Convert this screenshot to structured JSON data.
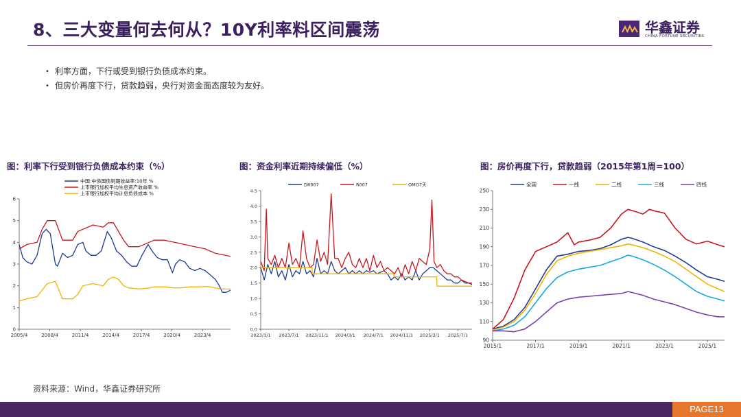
{
  "page": {
    "title": "8、三大变量何去何从？10Y利率料区间震荡",
    "logo_name": "华鑫证券",
    "logo_sub": "CHINA FORTUNE SECURITIES",
    "page_label": "PAGE13",
    "source": "资料来源：Wind，华鑫证券研究所",
    "bullets": [
      "利率方面，下行或受到银行负债成本约束。",
      "但房价再度下行，贷款趋弱，央行对资金面态度较为友好。"
    ]
  },
  "chart_data": [
    {
      "type": "line",
      "title": "图：利率下行受到银行负债成本约束（%）",
      "x_ticks": [
        "2005/4",
        "2008/4",
        "2011/4",
        "2014/4",
        "2017/4",
        "2020/4",
        "2023/4"
      ],
      "x_tick_pos": [
        2005.25,
        2008.25,
        2011.25,
        2014.25,
        2017.25,
        2020.25,
        2023.25
      ],
      "xlim": [
        2005.25,
        2026.0
      ],
      "ylim": [
        0,
        6
      ],
      "y_ticks": [
        "0",
        "1",
        "2",
        "3",
        "4",
        "5",
        "6"
      ],
      "legend_position": "top-left",
      "series": [
        {
          "name": "中国:中债国债到期收益率:10年 %",
          "color": "#1f3a93",
          "x": [
            2005.25,
            2005.6,
            2006.0,
            2006.5,
            2007.0,
            2007.5,
            2007.9,
            2008.3,
            2008.8,
            2009.0,
            2009.5,
            2010.0,
            2010.5,
            2011.0,
            2011.5,
            2011.8,
            2012.3,
            2012.8,
            2013.3,
            2013.9,
            2014.3,
            2014.8,
            2015.3,
            2015.8,
            2016.3,
            2016.8,
            2017.3,
            2017.9,
            2018.3,
            2018.8,
            2019.3,
            2019.8,
            2020.3,
            2020.6,
            2021.0,
            2021.5,
            2022.0,
            2022.5,
            2023.0,
            2023.5,
            2024.0,
            2024.5,
            2024.9,
            2025.2,
            2025.6,
            2026.0
          ],
          "values": [
            3.9,
            3.3,
            3.1,
            3.0,
            3.4,
            4.4,
            4.6,
            4.4,
            3.0,
            2.9,
            3.5,
            3.3,
            3.4,
            3.9,
            4.0,
            3.6,
            3.4,
            3.4,
            3.6,
            4.5,
            4.2,
            3.6,
            3.4,
            3.1,
            2.9,
            2.9,
            3.4,
            3.9,
            3.6,
            3.3,
            3.2,
            3.2,
            2.6,
            3.0,
            3.2,
            3.1,
            2.8,
            2.7,
            2.8,
            2.7,
            2.5,
            2.3,
            2.0,
            1.7,
            1.7,
            1.8
          ]
        },
        {
          "name": "上市银行加权平均生息资产收益率 %",
          "color": "#c8161d",
          "x": [
            2005.25,
            2006.0,
            2007.0,
            2007.5,
            2008.0,
            2008.8,
            2009.5,
            2010.5,
            2011.0,
            2011.5,
            2012.5,
            2013.5,
            2014.0,
            2014.5,
            2015.0,
            2015.5,
            2016.0,
            2017.0,
            2018.0,
            2018.5,
            2019.5,
            2020.5,
            2021.0,
            2021.5,
            2022.0,
            2022.5,
            2023.0,
            2023.5,
            2024.0,
            2024.5,
            2025.0,
            2025.5,
            2026.0
          ],
          "values": [
            3.7,
            3.9,
            4.0,
            4.6,
            5.0,
            5.0,
            4.1,
            4.1,
            4.5,
            4.6,
            4.8,
            4.7,
            4.9,
            4.9,
            4.5,
            4.1,
            3.8,
            3.8,
            4.0,
            4.1,
            4.1,
            4.0,
            3.95,
            3.9,
            3.85,
            3.8,
            3.75,
            3.7,
            3.6,
            3.5,
            3.45,
            3.4,
            3.35
          ]
        },
        {
          "name": "上市银行加权平均计息负债成本 %",
          "color": "#f0b400",
          "x": [
            2005.25,
            2006.0,
            2007.0,
            2007.5,
            2008.0,
            2008.8,
            2009.5,
            2010.5,
            2011.0,
            2011.5,
            2012.5,
            2013.5,
            2014.0,
            2014.5,
            2015.0,
            2015.5,
            2016.0,
            2017.0,
            2018.0,
            2018.5,
            2019.5,
            2020.5,
            2021.0,
            2021.5,
            2022.0,
            2022.5,
            2023.0,
            2023.5,
            2024.0,
            2024.5,
            2025.0,
            2025.5,
            2026.0
          ],
          "values": [
            1.3,
            1.4,
            1.5,
            1.8,
            2.1,
            2.2,
            1.4,
            1.4,
            1.6,
            2.0,
            2.1,
            2.0,
            2.3,
            2.4,
            2.3,
            2.0,
            1.9,
            1.85,
            1.9,
            1.95,
            1.95,
            1.9,
            1.9,
            1.92,
            1.95,
            1.95,
            1.95,
            1.97,
            1.95,
            1.9,
            1.85,
            1.85,
            1.85
          ]
        }
      ]
    },
    {
      "type": "line",
      "title": "图：资金利率近期持续偏低（%）",
      "x_ticks": [
        "2023/3/1",
        "2023/7/1",
        "2023/11/1",
        "2024/3/1",
        "2024/7/1",
        "2024/11/1",
        "2025/3/1",
        "2025/7/1"
      ],
      "x_tick_pos": [
        0,
        4,
        8,
        12,
        16,
        20,
        24,
        28
      ],
      "xlim": [
        0,
        30
      ],
      "ylim": [
        0,
        4.5
      ],
      "y_ticks": [
        "0.0",
        "0.5",
        "1.0",
        "1.5",
        "2.0",
        "2.5",
        "3.0",
        "3.5",
        "4.0",
        "4.5"
      ],
      "legend_position": "top",
      "series": [
        {
          "name": "DR007",
          "color": "#1f3a93",
          "x": [
            0,
            0.5,
            1.0,
            1.5,
            2.0,
            2.5,
            3.0,
            3.5,
            4.0,
            4.5,
            5.0,
            5.5,
            6.0,
            6.5,
            7.0,
            7.5,
            8.0,
            8.5,
            9.0,
            9.5,
            10.0,
            10.5,
            11.0,
            11.5,
            12.0,
            12.5,
            13.0,
            13.5,
            14.0,
            14.5,
            15.0,
            15.5,
            16.0,
            16.5,
            17.0,
            17.5,
            18.0,
            18.5,
            19.0,
            19.5,
            20.0,
            20.5,
            21.0,
            21.5,
            22.0,
            22.5,
            23.0,
            23.5,
            24.0,
            24.5,
            25.0,
            25.5,
            26.0,
            26.5,
            27.0,
            27.5,
            28.0,
            28.5,
            29.0,
            29.5,
            30.0
          ],
          "values": [
            2.0,
            1.6,
            2.1,
            1.8,
            2.2,
            1.7,
            1.9,
            1.6,
            2.1,
            1.7,
            1.9,
            1.8,
            2.2,
            1.8,
            1.9,
            1.7,
            2.3,
            1.8,
            1.9,
            1.8,
            2.2,
            1.9,
            1.8,
            1.9,
            2.0,
            1.8,
            1.9,
            1.8,
            1.9,
            1.8,
            1.9,
            1.85,
            1.9,
            1.8,
            1.85,
            1.9,
            1.8,
            1.6,
            1.7,
            1.6,
            1.8,
            1.6,
            1.7,
            1.6,
            1.9,
            1.6,
            1.8,
            1.9,
            2.0,
            2.0,
            1.9,
            1.8,
            1.7,
            1.6,
            1.6,
            1.5,
            1.5,
            1.6,
            1.5,
            1.5,
            1.45
          ]
        },
        {
          "name": "R007",
          "color": "#c8161d",
          "x": [
            0,
            0.5,
            0.8,
            1.0,
            1.5,
            2.0,
            2.5,
            3.0,
            3.5,
            4.0,
            4.5,
            5.0,
            5.5,
            6.0,
            6.5,
            7.0,
            7.5,
            8.0,
            8.5,
            9.0,
            9.5,
            10.0,
            10.5,
            11.0,
            11.5,
            12.0,
            12.5,
            13.0,
            13.5,
            14.0,
            14.5,
            15.0,
            15.5,
            16.0,
            16.5,
            17.0,
            17.5,
            18.0,
            18.5,
            19.0,
            19.5,
            20.0,
            20.5,
            21.0,
            21.5,
            22.0,
            22.5,
            23.0,
            23.5,
            24.0,
            24.3,
            24.6,
            25.0,
            25.5,
            26.0,
            26.5,
            27.0,
            27.5,
            28.0,
            28.5,
            29.0,
            29.5,
            30.0
          ],
          "values": [
            2.2,
            1.9,
            3.9,
            2.3,
            2.1,
            2.4,
            2.0,
            2.3,
            2.0,
            2.8,
            2.1,
            2.3,
            2.0,
            3.2,
            2.3,
            2.0,
            2.1,
            2.9,
            2.2,
            2.5,
            2.1,
            4.4,
            2.3,
            2.3,
            2.0,
            2.3,
            2.5,
            2.1,
            2.0,
            2.3,
            2.0,
            2.3,
            1.9,
            2.4,
            2.0,
            2.2,
            1.9,
            2.0,
            1.9,
            1.8,
            2.0,
            1.7,
            2.1,
            1.8,
            2.2,
            1.9,
            2.3,
            2.2,
            2.1,
            2.6,
            4.2,
            2.2,
            2.0,
            2.1,
            1.9,
            1.8,
            1.8,
            1.7,
            1.7,
            1.6,
            1.55,
            1.5,
            1.5
          ]
        },
        {
          "name": "OMO7天",
          "color": "#f0b400",
          "x": [
            0,
            7.3,
            7.31,
            18.9,
            18.91,
            25.0,
            25.01,
            30.0
          ],
          "values": [
            2.0,
            2.0,
            1.8,
            1.8,
            1.7,
            1.7,
            1.4,
            1.4
          ]
        }
      ]
    },
    {
      "type": "line",
      "title": "图：房价再度下行，贷款趋弱（2015年第1周=100）",
      "x_ticks": [
        "2015/1",
        "2017/1",
        "2019/1",
        "2021/1",
        "2023/1",
        "2025/1"
      ],
      "x_tick_pos": [
        2015,
        2017,
        2019,
        2021,
        2023,
        2025
      ],
      "xlim": [
        2015,
        2025.8
      ],
      "ylim": [
        90,
        250
      ],
      "y_ticks": [
        "90",
        "110",
        "130",
        "150",
        "170",
        "190",
        "210",
        "230",
        "250"
      ],
      "legend_position": "top",
      "series": [
        {
          "name": "全国",
          "color": "#1f3a93",
          "x": [
            2015.0,
            2015.5,
            2016.0,
            2016.5,
            2017.0,
            2017.5,
            2018.0,
            2018.5,
            2019.0,
            2019.5,
            2020.0,
            2020.5,
            2021.0,
            2021.3,
            2021.5,
            2022.0,
            2022.5,
            2023.0,
            2023.5,
            2024.0,
            2024.5,
            2025.0,
            2025.5,
            2025.8
          ],
          "values": [
            102,
            105,
            112,
            125,
            145,
            165,
            180,
            182,
            185,
            186,
            188,
            192,
            198,
            200,
            199,
            195,
            190,
            186,
            180,
            173,
            165,
            158,
            155,
            153
          ]
        },
        {
          "name": "一线",
          "color": "#c8161d",
          "x": [
            2015.0,
            2015.5,
            2016.0,
            2016.5,
            2017.0,
            2017.5,
            2018.0,
            2018.5,
            2018.8,
            2019.0,
            2019.5,
            2020.0,
            2020.5,
            2021.0,
            2021.3,
            2021.6,
            2022.0,
            2022.3,
            2022.6,
            2023.0,
            2023.5,
            2024.0,
            2024.5,
            2025.0,
            2025.5,
            2025.8
          ],
          "values": [
            102,
            112,
            135,
            165,
            185,
            190,
            195,
            205,
            192,
            195,
            197,
            200,
            210,
            225,
            230,
            228,
            225,
            230,
            228,
            226,
            210,
            198,
            193,
            196,
            192,
            190
          ]
        },
        {
          "name": "二线",
          "color": "#f0b400",
          "x": [
            2015.0,
            2015.5,
            2016.0,
            2016.5,
            2017.0,
            2017.5,
            2018.0,
            2018.5,
            2019.0,
            2019.5,
            2020.0,
            2020.5,
            2021.0,
            2021.3,
            2021.5,
            2022.0,
            2022.5,
            2023.0,
            2023.5,
            2024.0,
            2024.5,
            2025.0,
            2025.5,
            2025.8
          ],
          "values": [
            101,
            104,
            110,
            122,
            140,
            160,
            175,
            180,
            183,
            185,
            187,
            189,
            191,
            193,
            192,
            189,
            185,
            180,
            174,
            166,
            158,
            150,
            145,
            142
          ]
        },
        {
          "name": "三线",
          "color": "#17a8e3",
          "x": [
            2015.0,
            2015.5,
            2016.0,
            2016.5,
            2017.0,
            2017.5,
            2018.0,
            2018.5,
            2019.0,
            2019.5,
            2020.0,
            2020.5,
            2021.0,
            2021.3,
            2021.5,
            2022.0,
            2022.5,
            2023.0,
            2023.5,
            2024.0,
            2024.5,
            2025.0,
            2025.5,
            2025.8
          ],
          "values": [
            100,
            102,
            106,
            115,
            130,
            145,
            157,
            163,
            166,
            168,
            170,
            174,
            178,
            181,
            180,
            176,
            171,
            165,
            158,
            150,
            142,
            137,
            134,
            132
          ]
        },
        {
          "name": "四线",
          "color": "#7d3fb0",
          "x": [
            2015.0,
            2015.5,
            2016.0,
            2016.5,
            2017.0,
            2017.5,
            2018.0,
            2018.5,
            2019.0,
            2019.5,
            2020.0,
            2020.5,
            2021.0,
            2021.3,
            2021.5,
            2022.0,
            2022.5,
            2023.0,
            2023.5,
            2024.0,
            2024.5,
            2025.0,
            2025.5,
            2025.8
          ],
          "values": [
            100,
            100,
            99,
            102,
            110,
            120,
            130,
            134,
            136,
            137,
            138,
            139,
            140,
            142,
            141,
            138,
            134,
            131,
            128,
            124,
            120,
            117,
            115,
            115
          ]
        }
      ]
    }
  ]
}
